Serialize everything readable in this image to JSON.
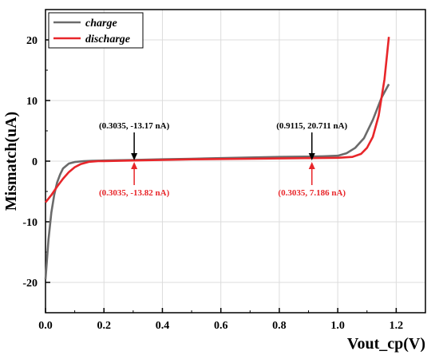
{
  "chart_data": {
    "type": "line",
    "title": "",
    "xlabel": "Vout_cp(V)",
    "ylabel": "Mismatch(uA)",
    "xlim": [
      0.0,
      1.3
    ],
    "ylim": [
      -25,
      25
    ],
    "xticks": [
      0.0,
      0.2,
      0.4,
      0.6,
      0.8,
      1.0,
      1.2
    ],
    "xtick_labels": [
      "0.0",
      "0.2",
      "0.4",
      "0.6",
      "0.8",
      "1.0",
      "1.2"
    ],
    "yticks": [
      -20,
      -10,
      0,
      10,
      20
    ],
    "ytick_labels": [
      "-20",
      "-10",
      "0",
      "10",
      "20"
    ],
    "grid": true,
    "legend_position": "top-left",
    "series": [
      {
        "name": "charge",
        "color": "#6b6b6b",
        "x": [
          0.0,
          0.01,
          0.02,
          0.03,
          0.04,
          0.05,
          0.06,
          0.08,
          0.1,
          0.13,
          0.16,
          0.2,
          0.3,
          0.4,
          0.5,
          0.6,
          0.7,
          0.8,
          0.9,
          0.95,
          1.0,
          1.03,
          1.06,
          1.09,
          1.12,
          1.15,
          1.175
        ],
        "y": [
          -19.5,
          -13,
          -8.5,
          -5.5,
          -3.5,
          -2.2,
          -1.2,
          -0.4,
          -0.15,
          0.0,
          0.05,
          0.1,
          0.2,
          0.3,
          0.4,
          0.5,
          0.6,
          0.7,
          0.75,
          0.8,
          0.9,
          1.3,
          2.2,
          3.8,
          6.8,
          10.5,
          12.7
        ]
      },
      {
        "name": "discharge",
        "color": "#e8262a",
        "x": [
          0.0,
          0.02,
          0.04,
          0.06,
          0.08,
          0.1,
          0.12,
          0.15,
          0.18,
          0.2,
          0.3,
          0.4,
          0.5,
          0.6,
          0.7,
          0.8,
          0.9,
          1.0,
          1.05,
          1.08,
          1.1,
          1.12,
          1.14,
          1.16,
          1.175
        ],
        "y": [
          -6.8,
          -5.6,
          -4.2,
          -2.9,
          -1.8,
          -1.0,
          -0.5,
          -0.1,
          0.0,
          0.0,
          0.1,
          0.2,
          0.3,
          0.35,
          0.4,
          0.45,
          0.5,
          0.55,
          0.7,
          1.2,
          2.2,
          4.0,
          7.5,
          13.5,
          20.5
        ]
      }
    ],
    "annotations": [
      {
        "text": "(0.3035, -13.17 nA)",
        "x": 0.3035,
        "y": 0,
        "color": "#000000",
        "side": "above"
      },
      {
        "text": "(0.9115, 20.711 nA)",
        "x": 0.9115,
        "y": 0,
        "color": "#000000",
        "side": "above"
      },
      {
        "text": "(0.3035, -13.82 nA)",
        "x": 0.3035,
        "y": 0,
        "color": "#e8262a",
        "side": "below"
      },
      {
        "text": "(0.3035, 7.186 nA)",
        "x": 0.9115,
        "y": 0,
        "color": "#e8262a",
        "side": "below"
      }
    ]
  }
}
